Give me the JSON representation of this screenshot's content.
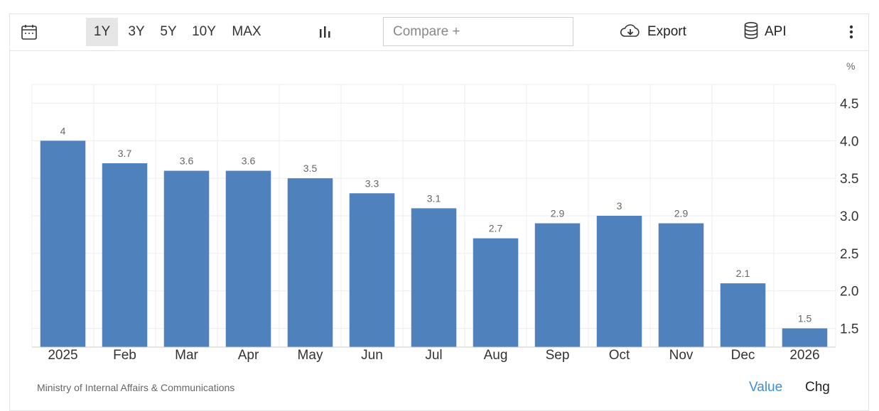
{
  "toolbar": {
    "calendar_icon": "calendar-icon",
    "ranges": [
      "1Y",
      "3Y",
      "5Y",
      "10Y",
      "MAX"
    ],
    "active_range": "1Y",
    "chart_type_icon": "bar-chart-icon",
    "compare_placeholder": "Compare +",
    "export_label": "Export",
    "export_icon": "cloud-download-icon",
    "api_label": "API",
    "api_icon": "database-icon",
    "more_icon": "vertical-dots-icon"
  },
  "footer": {
    "source": "Ministry of Internal Affairs & Communications",
    "value_tab": "Value",
    "chg_tab": "Chg",
    "value_color": "#3b8fdc"
  },
  "chart_data": {
    "type": "bar",
    "unit": "%",
    "categories": [
      "2025",
      "Feb",
      "Mar",
      "Apr",
      "May",
      "Jun",
      "Jul",
      "Aug",
      "Sep",
      "Oct",
      "Nov",
      "Dec",
      "2026"
    ],
    "values": [
      4,
      3.7,
      3.6,
      3.6,
      3.5,
      3.3,
      3.1,
      2.7,
      2.9,
      3,
      2.9,
      2.1,
      1.5
    ],
    "value_labels": [
      "4",
      "3.7",
      "3.6",
      "3.6",
      "3.5",
      "3.3",
      "3.1",
      "2.7",
      "2.9",
      "3",
      "2.9",
      "2.1",
      "1.5"
    ],
    "yticks": [
      "1.5",
      "2.0",
      "2.5",
      "3.0",
      "3.5",
      "4.0",
      "4.5"
    ],
    "ylim": [
      1.25,
      4.75
    ],
    "y_axis_side": "right",
    "bar_color": "#4f81bd",
    "grid": true
  }
}
